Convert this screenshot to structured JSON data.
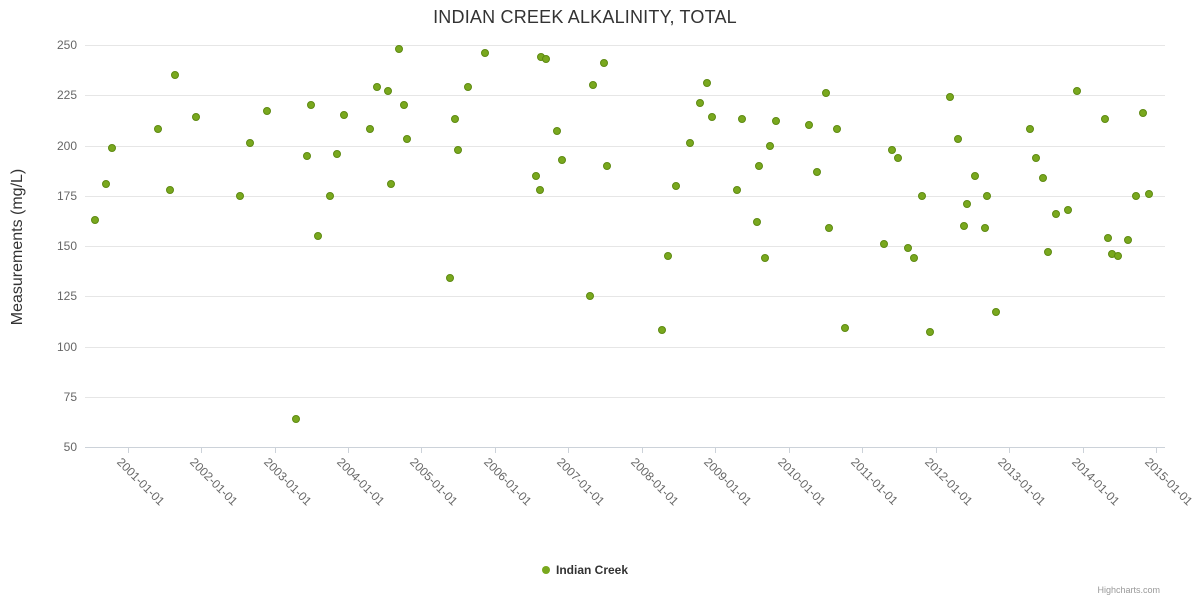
{
  "credits": "Highcharts.com",
  "colors": {
    "marker": "#79A81E",
    "marker_stroke": "#5E8A12",
    "grid": "#e6e6e6",
    "axis_line": "#ccd2d9",
    "tick_text": "#666666",
    "title_text": "#333333"
  },
  "chart_data": {
    "type": "scatter",
    "title": "INDIAN CREEK ALKALINITY, TOTAL",
    "xlabel": "",
    "ylabel": "Measurements (mg/L)",
    "ylim": [
      50,
      250
    ],
    "xlim": [
      2000.42,
      2015.12
    ],
    "grid": true,
    "legend_position": "bottom-center",
    "y_ticks": [
      50,
      75,
      100,
      125,
      150,
      175,
      200,
      225,
      250
    ],
    "x_tick_years": [
      2001,
      2002,
      2003,
      2004,
      2005,
      2006,
      2007,
      2008,
      2009,
      2010,
      2011,
      2012,
      2013,
      2014,
      2015
    ],
    "x_ticks": [
      "2001-01-01",
      "2002-01-01",
      "2003-01-01",
      "2004-01-01",
      "2005-01-01",
      "2006-01-01",
      "2007-01-01",
      "2008-01-01",
      "2009-01-01",
      "2010-01-01",
      "2011-01-01",
      "2012-01-01",
      "2013-01-01",
      "2014-01-01",
      "2015-01-01"
    ],
    "series": [
      {
        "name": "Indian Creek",
        "points": [
          [
            2000.55,
            163
          ],
          [
            2000.7,
            181
          ],
          [
            2000.79,
            199
          ],
          [
            2001.41,
            208
          ],
          [
            2001.58,
            178
          ],
          [
            2001.65,
            235
          ],
          [
            2001.93,
            214
          ],
          [
            2002.53,
            175
          ],
          [
            2002.67,
            201
          ],
          [
            2002.9,
            217
          ],
          [
            2003.29,
            64
          ],
          [
            2003.44,
            195
          ],
          [
            2003.49,
            220
          ],
          [
            2003.59,
            155
          ],
          [
            2003.75,
            175
          ],
          [
            2003.85,
            196
          ],
          [
            2003.94,
            215
          ],
          [
            2004.3,
            208
          ],
          [
            2004.39,
            229
          ],
          [
            2004.54,
            227
          ],
          [
            2004.58,
            181
          ],
          [
            2004.69,
            248
          ],
          [
            2004.76,
            220
          ],
          [
            2004.8,
            203
          ],
          [
            2005.39,
            134
          ],
          [
            2005.45,
            213
          ],
          [
            2005.5,
            198
          ],
          [
            2005.63,
            229
          ],
          [
            2005.86,
            246
          ],
          [
            2006.56,
            185
          ],
          [
            2006.61,
            178
          ],
          [
            2006.62,
            244
          ],
          [
            2006.7,
            243
          ],
          [
            2006.84,
            207
          ],
          [
            2006.91,
            193
          ],
          [
            2007.29,
            125
          ],
          [
            2007.33,
            230
          ],
          [
            2007.48,
            241
          ],
          [
            2007.52,
            190
          ],
          [
            2008.27,
            108
          ],
          [
            2008.35,
            145
          ],
          [
            2008.46,
            180
          ],
          [
            2008.66,
            201
          ],
          [
            2008.79,
            221
          ],
          [
            2008.88,
            231
          ],
          [
            2008.95,
            214
          ],
          [
            2009.29,
            178
          ],
          [
            2009.36,
            213
          ],
          [
            2009.56,
            162
          ],
          [
            2009.6,
            190
          ],
          [
            2009.67,
            144
          ],
          [
            2009.75,
            200
          ],
          [
            2009.83,
            212
          ],
          [
            2010.28,
            210
          ],
          [
            2010.39,
            187
          ],
          [
            2010.5,
            226
          ],
          [
            2010.55,
            159
          ],
          [
            2010.66,
            208
          ],
          [
            2010.76,
            109
          ],
          [
            2011.29,
            151
          ],
          [
            2011.4,
            198
          ],
          [
            2011.49,
            194
          ],
          [
            2011.62,
            149
          ],
          [
            2011.7,
            144
          ],
          [
            2011.81,
            175
          ],
          [
            2011.92,
            107
          ],
          [
            2012.2,
            224
          ],
          [
            2012.3,
            203
          ],
          [
            2012.39,
            160
          ],
          [
            2012.43,
            171
          ],
          [
            2012.53,
            185
          ],
          [
            2012.67,
            159
          ],
          [
            2012.7,
            175
          ],
          [
            2012.82,
            117
          ],
          [
            2013.28,
            208
          ],
          [
            2013.36,
            194
          ],
          [
            2013.46,
            184
          ],
          [
            2013.53,
            147
          ],
          [
            2013.63,
            166
          ],
          [
            2013.8,
            168
          ],
          [
            2013.92,
            227
          ],
          [
            2014.3,
            213
          ],
          [
            2014.34,
            154
          ],
          [
            2014.4,
            146
          ],
          [
            2014.48,
            145
          ],
          [
            2014.61,
            153
          ],
          [
            2014.72,
            175
          ],
          [
            2014.82,
            216
          ],
          [
            2014.9,
            176
          ]
        ]
      }
    ]
  }
}
